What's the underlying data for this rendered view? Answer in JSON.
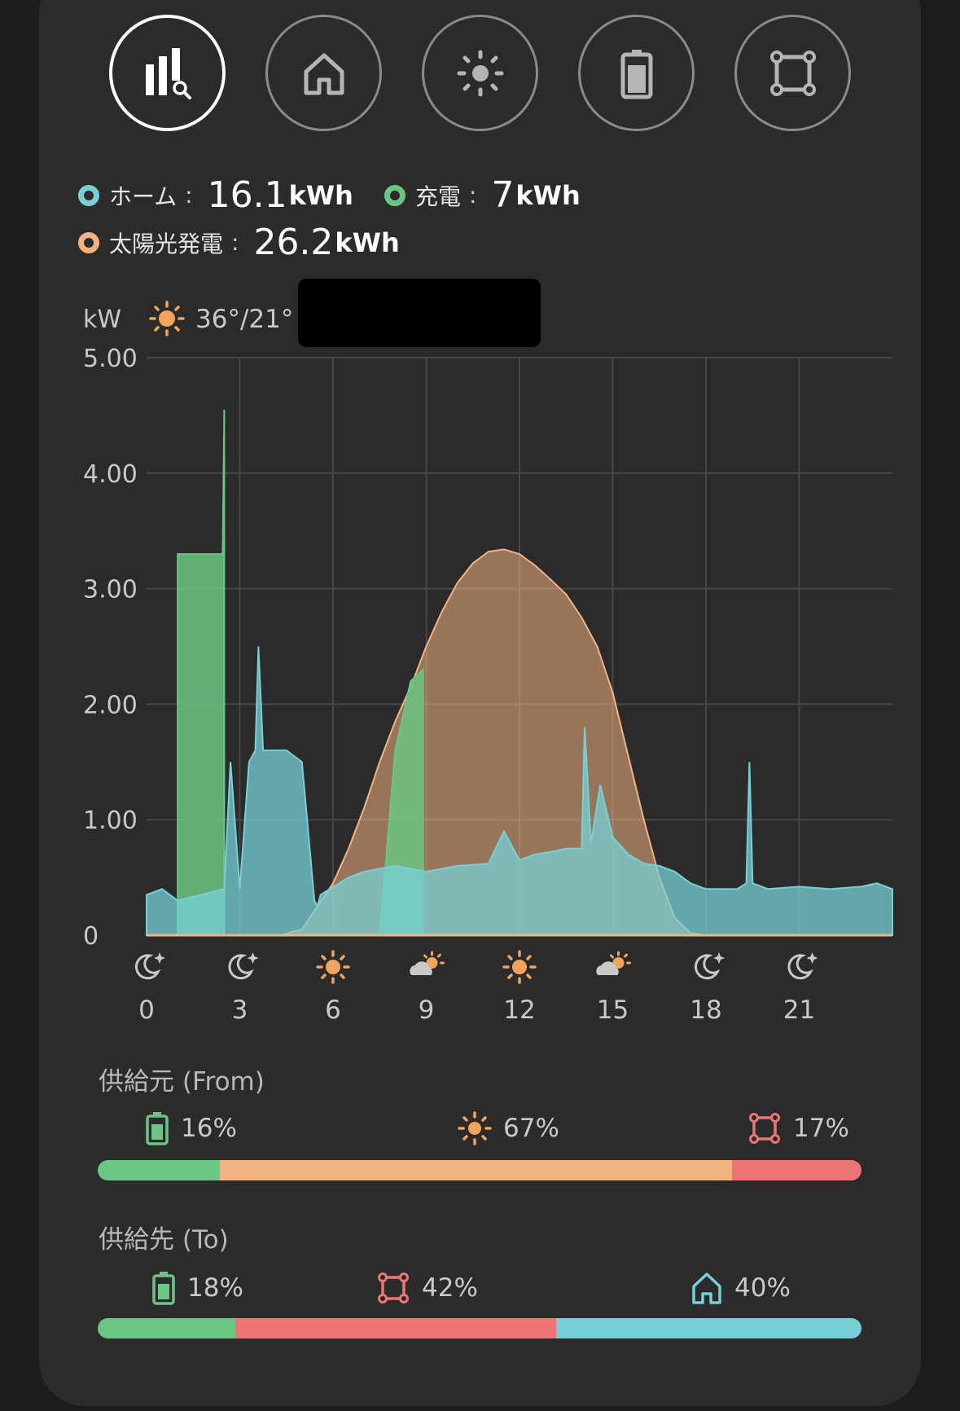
{
  "nav": {
    "items": [
      {
        "name": "nav-stats-button",
        "icon": "bar-chart-search-icon",
        "active": true
      },
      {
        "name": "nav-home-button",
        "icon": "home-icon",
        "active": false
      },
      {
        "name": "nav-solar-button",
        "icon": "sun-icon",
        "active": false
      },
      {
        "name": "nav-battery-button",
        "icon": "battery-icon",
        "active": false
      },
      {
        "name": "nav-grid-button",
        "icon": "grid-icon",
        "active": false
      }
    ]
  },
  "summary": {
    "home": {
      "label": "ホーム",
      "sep": ":",
      "value": "16.1",
      "unit": "kWh",
      "color": "#78d0d6"
    },
    "charge": {
      "label": "充電",
      "sep": ":",
      "value": "7",
      "unit": "kWh",
      "color": "#6cc585"
    },
    "solar": {
      "label": "太陽光発電",
      "sep": ":",
      "value": "26.2",
      "unit": "kWh",
      "color": "#f2b382"
    }
  },
  "weather": {
    "unit_label": "kW",
    "temps": "36°/21°",
    "icon": "sun-icon"
  },
  "chart_data": {
    "type": "area",
    "ylabel": "kW",
    "ylim": [
      0,
      5
    ],
    "y_ticks": [
      "5.00",
      "4.00",
      "3.00",
      "2.00",
      "1.00",
      "0"
    ],
    "x_ticks": [
      "0",
      "3",
      "6",
      "9",
      "12",
      "15",
      "18",
      "21"
    ],
    "x_tick_icons": [
      "moon-icon",
      "moon-icon",
      "sun-icon",
      "partly-cloudy-icon",
      "sun-icon",
      "partly-cloudy-icon",
      "moon-icon",
      "moon-icon"
    ],
    "xlim": [
      0,
      24
    ],
    "grid": true,
    "series": [
      {
        "key": "solar",
        "color": "#f2b382",
        "x": [
          0,
          4.3,
          5.0,
          5.5,
          6.0,
          6.5,
          7.0,
          7.5,
          8.0,
          8.5,
          9.0,
          9.5,
          10.0,
          10.5,
          11.0,
          11.5,
          12.0,
          12.5,
          13.0,
          13.5,
          14.0,
          14.5,
          15.0,
          15.5,
          16.0,
          16.5,
          17.0,
          17.5,
          18.0,
          24
        ],
        "values": [
          0,
          0,
          0.05,
          0.25,
          0.45,
          0.75,
          1.1,
          1.5,
          1.85,
          2.15,
          2.5,
          2.8,
          3.05,
          3.22,
          3.32,
          3.34,
          3.3,
          3.2,
          3.08,
          2.95,
          2.75,
          2.5,
          2.1,
          1.55,
          1.0,
          0.5,
          0.15,
          0.02,
          0,
          0
        ]
      },
      {
        "key": "charge",
        "color": "#6cc585",
        "x": [
          0,
          1.0,
          1.0,
          2.45,
          2.5,
          2.5,
          7.5,
          8.0,
          8.5,
          8.9,
          8.9,
          24
        ],
        "values": [
          0,
          0,
          3.3,
          3.3,
          4.55,
          0,
          0,
          1.6,
          2.2,
          2.3,
          0,
          0
        ]
      },
      {
        "key": "home",
        "color": "#78d0d6",
        "x": [
          0,
          0.5,
          1.0,
          2.5,
          2.7,
          3.0,
          3.3,
          3.5,
          3.6,
          3.75,
          4.0,
          4.5,
          5.0,
          5.4,
          5.5,
          5.6,
          6.5,
          7.0,
          8.0,
          9.0,
          10.0,
          11.0,
          11.5,
          12.0,
          12.5,
          13.0,
          13.5,
          14.0,
          14.1,
          14.3,
          14.6,
          15.0,
          15.5,
          16.0,
          16.5,
          17.0,
          17.5,
          18.0,
          19.0,
          19.3,
          19.4,
          19.5,
          20.0,
          21.0,
          22.0,
          23.0,
          23.5,
          24.0
        ],
        "values": [
          0.35,
          0.4,
          0.3,
          0.4,
          1.5,
          0.4,
          1.5,
          1.6,
          2.5,
          1.6,
          1.6,
          1.6,
          1.5,
          0.3,
          0.25,
          0.35,
          0.5,
          0.55,
          0.6,
          0.55,
          0.6,
          0.62,
          0.9,
          0.65,
          0.7,
          0.72,
          0.75,
          0.75,
          1.8,
          0.8,
          1.3,
          0.85,
          0.7,
          0.62,
          0.6,
          0.55,
          0.45,
          0.4,
          0.4,
          0.45,
          1.5,
          0.45,
          0.4,
          0.42,
          0.4,
          0.42,
          0.45,
          0.4
        ]
      }
    ]
  },
  "from": {
    "label": "供給元 (From)",
    "items": [
      {
        "icon": "battery-icon",
        "pct": "16%",
        "value": 16,
        "color": "#6cc585"
      },
      {
        "icon": "sun-icon",
        "pct": "67%",
        "value": 67,
        "color": "#f2b382"
      },
      {
        "icon": "grid-icon",
        "pct": "17%",
        "value": 17,
        "color": "#ec7676"
      }
    ]
  },
  "to": {
    "label": "供給先 (To)",
    "items": [
      {
        "icon": "battery-icon",
        "pct": "18%",
        "value": 18,
        "color": "#6cc585"
      },
      {
        "icon": "grid-icon",
        "pct": "42%",
        "value": 42,
        "color": "#ec7676"
      },
      {
        "icon": "home-icon",
        "pct": "40%",
        "value": 40,
        "color": "#78d0d6"
      }
    ]
  }
}
